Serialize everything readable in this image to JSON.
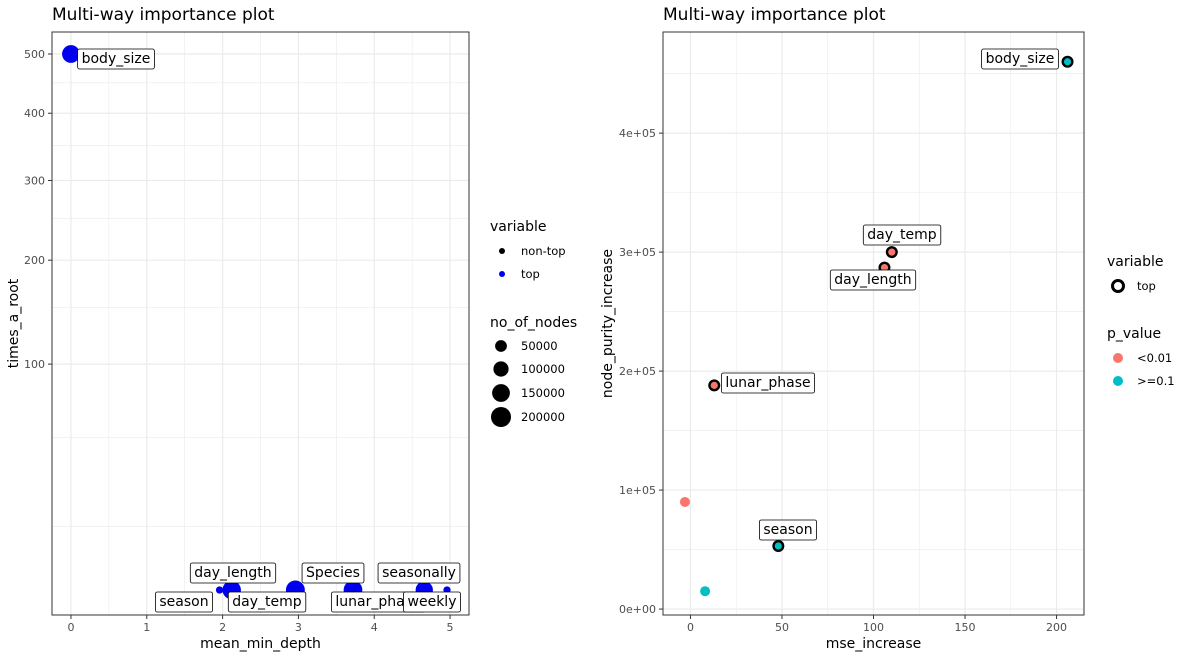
{
  "chart_data": [
    {
      "type": "scatter",
      "title": "Multi-way importance plot",
      "xlabel": "mean_min_depth",
      "ylabel": "times_a_root",
      "y_scale": "sqrt",
      "xlim": [
        -0.25,
        5.25
      ],
      "ylim": [
        0,
        540
      ],
      "x_ticks": [
        0,
        1,
        2,
        3,
        4,
        5
      ],
      "y_ticks": [
        100,
        200,
        300,
        400,
        500
      ],
      "x_tick_labels": [
        "0",
        "1",
        "2",
        "3",
        "4",
        "5"
      ],
      "y_tick_labels": [
        "100",
        "200",
        "300",
        "400",
        "500"
      ],
      "grid": true,
      "points": [
        {
          "label": "body_size",
          "x": 0.0,
          "y": 500,
          "no_of_nodes": 150000,
          "variable": "top"
        },
        {
          "label": "season",
          "x": 1.96,
          "y": 0,
          "no_of_nodes": 10000,
          "variable": "top"
        },
        {
          "label": "day_length",
          "x": 2.12,
          "y": 0,
          "no_of_nodes": 160000,
          "variable": "top"
        },
        {
          "label": "day_temp",
          "x": 2.12,
          "y": 0,
          "no_of_nodes": 160000,
          "variable": "top"
        },
        {
          "label": "Species",
          "x": 2.96,
          "y": 0,
          "no_of_nodes": 175000,
          "variable": "top"
        },
        {
          "label": "lunar_phase",
          "x": 3.72,
          "y": 0,
          "no_of_nodes": 170000,
          "variable": "top"
        },
        {
          "label": "seasonally",
          "x": 4.66,
          "y": 0,
          "no_of_nodes": 140000,
          "variable": "top"
        },
        {
          "label": "weekly",
          "x": 4.96,
          "y": 0,
          "no_of_nodes": 10000,
          "variable": "top"
        }
      ],
      "legend": {
        "position": "right",
        "variable_title": "variable",
        "variable_items": [
          "non-top",
          "top"
        ],
        "size_title": "no_of_nodes",
        "size_items": [
          "50000",
          "100000",
          "150000",
          "200000"
        ]
      }
    },
    {
      "type": "scatter",
      "title": "Multi-way importance plot",
      "xlabel": "mse_increase",
      "ylabel": "node_purity_increase",
      "xlim": [
        -15,
        215
      ],
      "ylim": [
        -5000,
        485000
      ],
      "x_ticks": [
        0,
        50,
        100,
        150,
        200
      ],
      "y_ticks": [
        0,
        100000,
        200000,
        300000,
        400000
      ],
      "x_tick_labels": [
        "0",
        "50",
        "100",
        "150",
        "200"
      ],
      "y_tick_labels": [
        "0e+00",
        "1e+05",
        "2e+05",
        "3e+05",
        "4e+05"
      ],
      "grid": true,
      "points": [
        {
          "label": "body_size",
          "x": 206,
          "y": 460000,
          "p_value": ">=0.1",
          "variable": "top"
        },
        {
          "label": "day_temp",
          "x": 110,
          "y": 300000,
          "p_value": "<0.01",
          "variable": "top"
        },
        {
          "label": "day_length",
          "x": 106,
          "y": 287000,
          "p_value": "<0.01",
          "variable": "top"
        },
        {
          "label": "lunar_phase",
          "x": 13,
          "y": 188000,
          "p_value": "<0.01",
          "variable": "top"
        },
        {
          "label": "",
          "x": -3,
          "y": 90000,
          "p_value": "<0.01",
          "variable": "non-top"
        },
        {
          "label": "season",
          "x": 48,
          "y": 53000,
          "p_value": ">=0.1",
          "variable": "top"
        },
        {
          "label": "",
          "x": 8,
          "y": 15000,
          "p_value": ">=0.1",
          "variable": "non-top"
        }
      ],
      "legend": {
        "position": "right",
        "variable_title": "variable",
        "variable_items": [
          "top"
        ],
        "pvalue_title": "p_value",
        "pvalue_items": [
          "<0.01",
          ">=0.1"
        ]
      }
    }
  ],
  "colors": {
    "top": "#0000ee",
    "p_low": "#f8766d",
    "p_high": "#00bfc4",
    "grid": "#ebebeb",
    "panel_border": "#333333"
  }
}
